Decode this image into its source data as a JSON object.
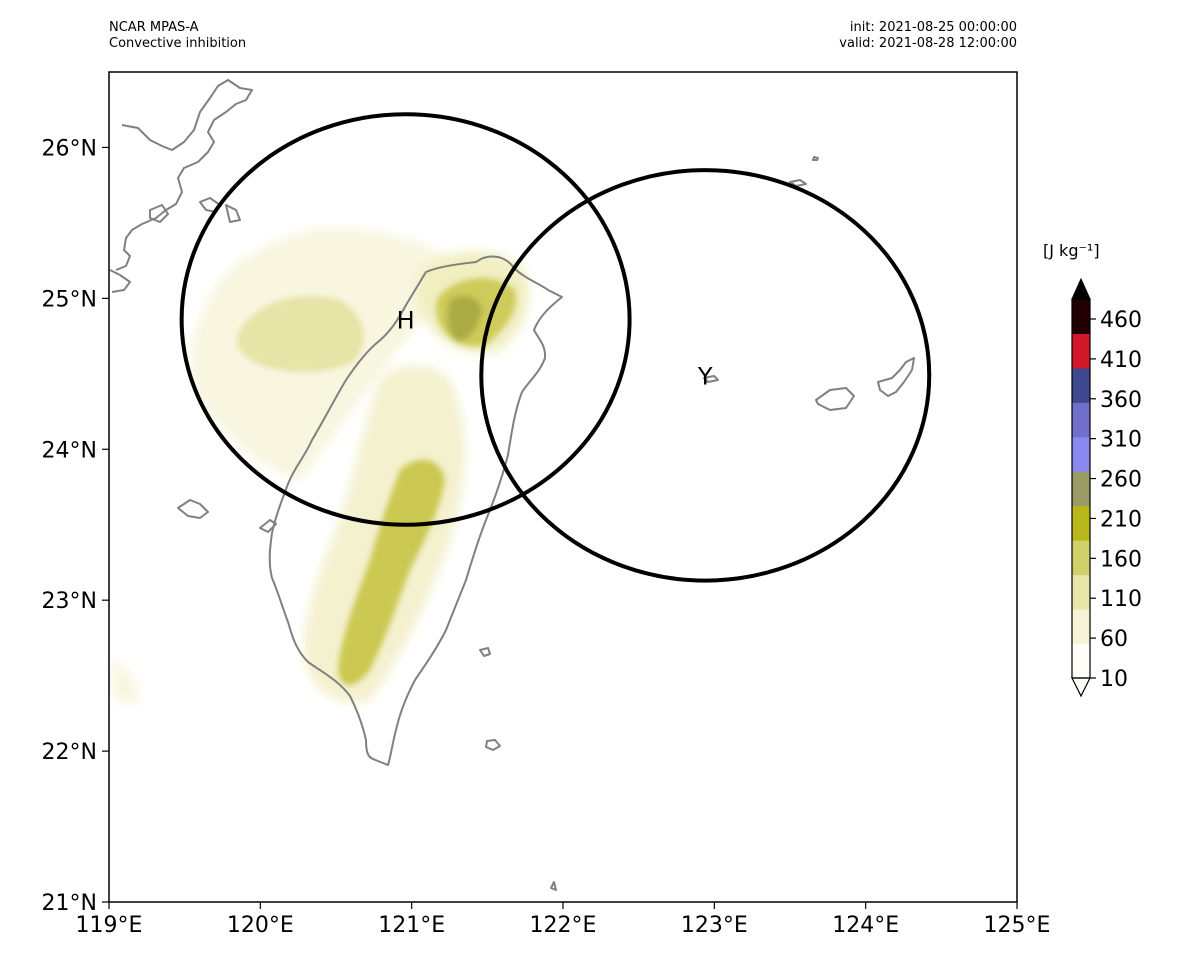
{
  "header": {
    "model": "NCAR MPAS-A",
    "field": "Convective inhibition",
    "init": "init: 2021-08-25 00:00:00",
    "valid": "valid: 2021-08-28 12:00:00"
  },
  "map": {
    "lon_range": [
      119,
      125
    ],
    "lat_range": [
      21,
      26.5
    ],
    "lon_ticks": [
      {
        "value": 119,
        "label": "119°E"
      },
      {
        "value": 120,
        "label": "120°E"
      },
      {
        "value": 121,
        "label": "121°E"
      },
      {
        "value": 122,
        "label": "122°E"
      },
      {
        "value": 123,
        "label": "123°E"
      },
      {
        "value": 124,
        "label": "124°E"
      },
      {
        "value": 125,
        "label": "125°E"
      }
    ],
    "lat_ticks": [
      {
        "value": 21,
        "label": "21°N"
      },
      {
        "value": 22,
        "label": "22°N"
      },
      {
        "value": 23,
        "label": "23°N"
      },
      {
        "value": 24,
        "label": "24°N"
      },
      {
        "value": 25,
        "label": "25°N"
      },
      {
        "value": 26,
        "label": "26°N"
      }
    ],
    "coastline_color": "#808080",
    "markers": [
      {
        "label": "H",
        "lon": 120.96,
        "lat": 24.86,
        "ring_lon_radius": 1.48,
        "ring_lat_radius": 1.36
      },
      {
        "label": "Y",
        "lon": 122.94,
        "lat": 24.49,
        "ring_lon_radius": 1.48,
        "ring_lat_radius": 1.36
      }
    ]
  },
  "colorbar": {
    "unit": "[J kg⁻¹]",
    "ticks": [
      "10",
      "60",
      "110",
      "160",
      "210",
      "260",
      "310",
      "360",
      "410",
      "460"
    ],
    "colors": [
      "#fffef6",
      "#f6f3d6",
      "#e8e6a8",
      "#d2d068",
      "#b8b81a",
      "#9a9a66",
      "#8888ee",
      "#7070cc",
      "#404890",
      "#d01828",
      "#200000"
    ],
    "extend": "both"
  }
}
